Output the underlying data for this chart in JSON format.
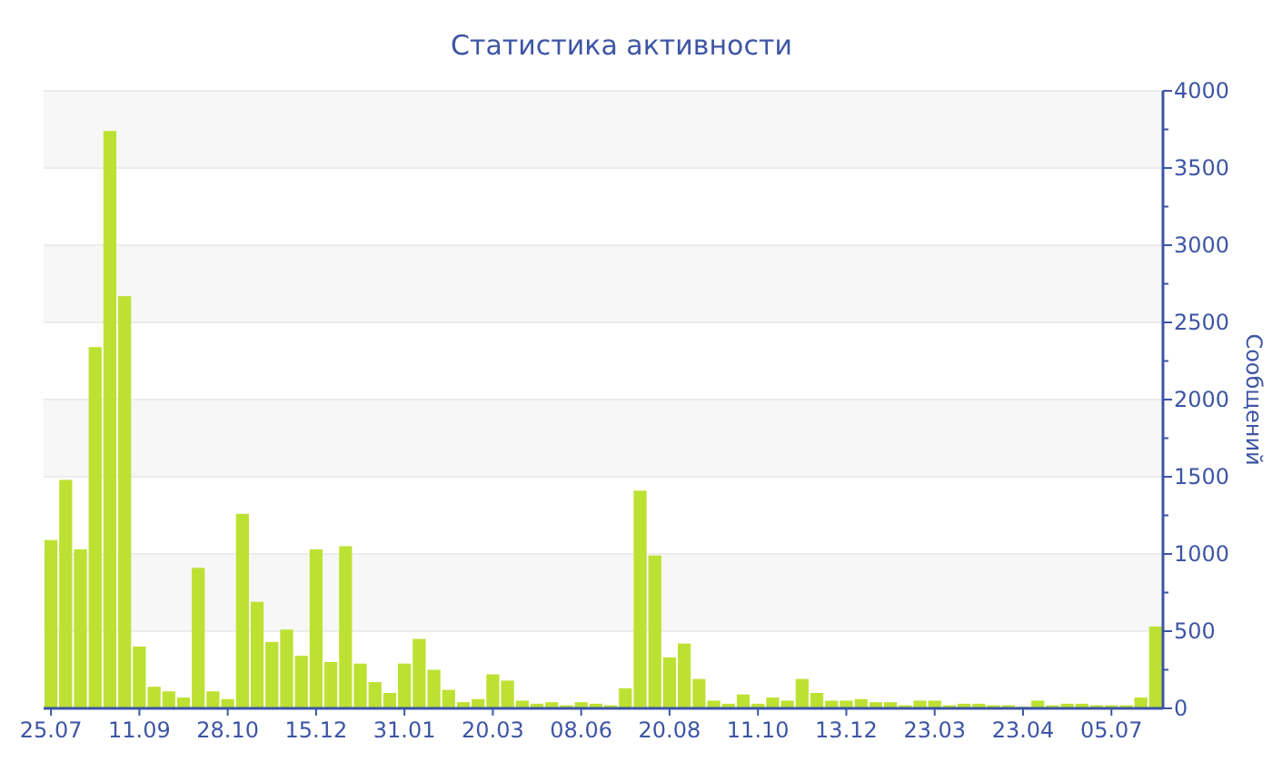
{
  "chart_data": {
    "type": "bar",
    "title": "Статистика активности",
    "ylabel": "Сообщений",
    "categories": [
      "25.07",
      null,
      null,
      null,
      null,
      null,
      "11.09",
      null,
      null,
      null,
      null,
      null,
      "28.10",
      null,
      null,
      null,
      null,
      null,
      "15.12",
      null,
      null,
      null,
      null,
      null,
      "31.01",
      null,
      null,
      null,
      null,
      null,
      "20.03",
      null,
      null,
      null,
      null,
      null,
      "08.06",
      null,
      null,
      null,
      null,
      null,
      "20.08",
      null,
      null,
      null,
      null,
      null,
      "11.10",
      null,
      null,
      null,
      null,
      null,
      "13.12",
      null,
      null,
      null,
      null,
      null,
      "23.03",
      null,
      null,
      null,
      null,
      null,
      "23.04",
      null,
      null,
      null,
      null,
      null,
      "05.07",
      null,
      null,
      null
    ],
    "values": [
      1090,
      1480,
      1030,
      2340,
      3740,
      2670,
      400,
      140,
      110,
      70,
      910,
      110,
      60,
      1260,
      690,
      430,
      510,
      340,
      1030,
      300,
      1050,
      290,
      170,
      100,
      290,
      450,
      250,
      120,
      40,
      60,
      220,
      180,
      50,
      30,
      40,
      20,
      40,
      30,
      20,
      130,
      1410,
      990,
      330,
      420,
      190,
      50,
      30,
      90,
      30,
      70,
      50,
      190,
      100,
      50,
      50,
      60,
      40,
      40,
      20,
      50,
      50,
      20,
      30,
      30,
      20,
      20,
      10,
      50,
      20,
      30,
      30,
      20,
      20,
      20,
      70,
      530
    ],
    "color": "#bde133",
    "ylim": [
      0,
      4000
    ],
    "yticks": [
      0,
      {
        "value": 250,
        "label": null
      },
      500,
      {
        "value": 750,
        "label": null
      },
      1000,
      {
        "value": 1250,
        "label": null
      },
      1500,
      {
        "value": 1750,
        "label": null
      },
      2000,
      {
        "value": 2250,
        "label": null
      },
      2500,
      {
        "value": 2750,
        "label": null
      },
      3000,
      {
        "value": 3250,
        "label": null
      },
      3500,
      {
        "value": 3750,
        "label": null
      },
      4000
    ],
    "grid": "y"
  }
}
